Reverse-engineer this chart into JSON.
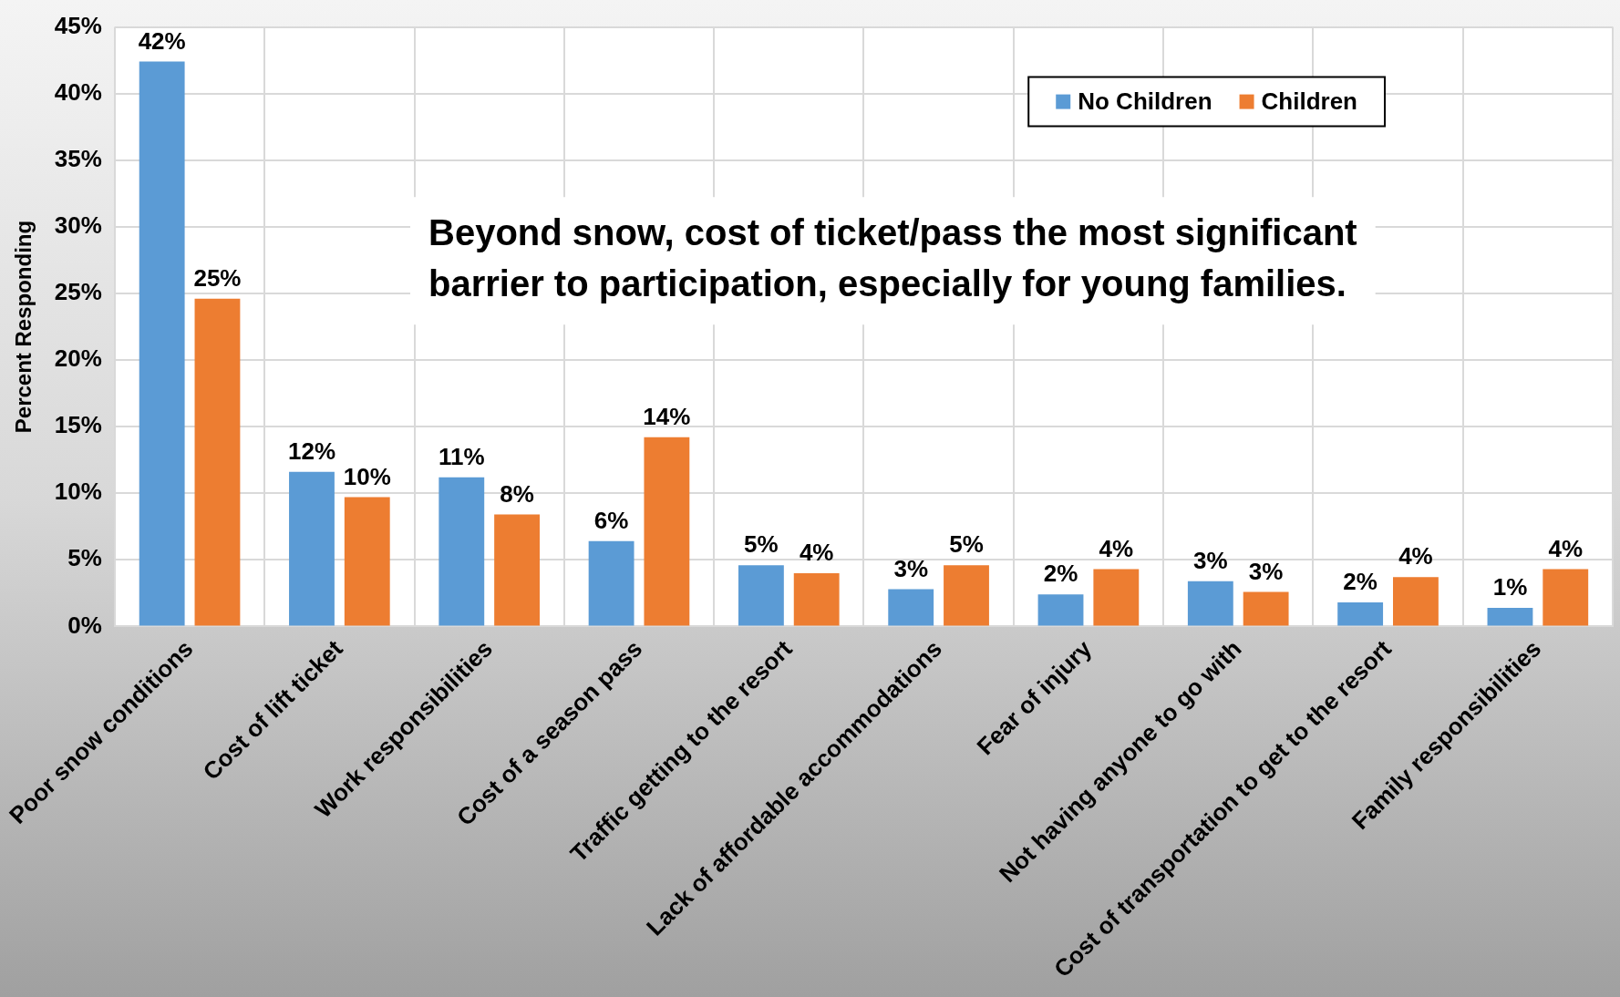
{
  "chart_data": {
    "type": "bar",
    "ylabel": "Percent Responding",
    "categories": [
      "Poor snow conditions",
      "Cost of lift ticket",
      "Work responsibilities",
      "Cost of a season pass",
      "Traffic getting to the resort",
      "Lack of affordable accommodations",
      "Fear of injury",
      "Not having anyone to go with",
      "Cost of transportation to get to the resort",
      "Family responsibilities"
    ],
    "series": [
      {
        "name": "No Children",
        "color": "#5b9bd5",
        "values": [
          42.4,
          11.6,
          11.2,
          6.4,
          4.6,
          2.8,
          2.4,
          3.4,
          1.8,
          1.4
        ],
        "value_labels": [
          "42%",
          "12%",
          "11%",
          "6%",
          "5%",
          "3%",
          "2%",
          "3%",
          "2%",
          "1%"
        ]
      },
      {
        "name": "Children",
        "color": "#ed7d31",
        "values": [
          24.6,
          9.7,
          8.4,
          14.2,
          4.0,
          4.6,
          4.3,
          2.6,
          3.7,
          4.3
        ],
        "value_labels": [
          "25%",
          "10%",
          "8%",
          "14%",
          "4%",
          "5%",
          "4%",
          "3%",
          "4%",
          "4%"
        ]
      }
    ],
    "ylim": [
      0,
      45
    ],
    "yticks": [
      {
        "value": 0,
        "label": "0%"
      },
      {
        "value": 5,
        "label": "5%"
      },
      {
        "value": 10,
        "label": "10%"
      },
      {
        "value": 15,
        "label": "15%"
      },
      {
        "value": 20,
        "label": "20%"
      },
      {
        "value": 25,
        "label": "25%"
      },
      {
        "value": 30,
        "label": "30%"
      },
      {
        "value": 35,
        "label": "35%"
      },
      {
        "value": 40,
        "label": "40%"
      },
      {
        "value": 45,
        "label": "45%"
      }
    ],
    "grid": true,
    "legend": "top right",
    "annotations": [
      "Beyond snow, cost of ticket/pass the most significant barrier to participation, especially for young families."
    ]
  }
}
